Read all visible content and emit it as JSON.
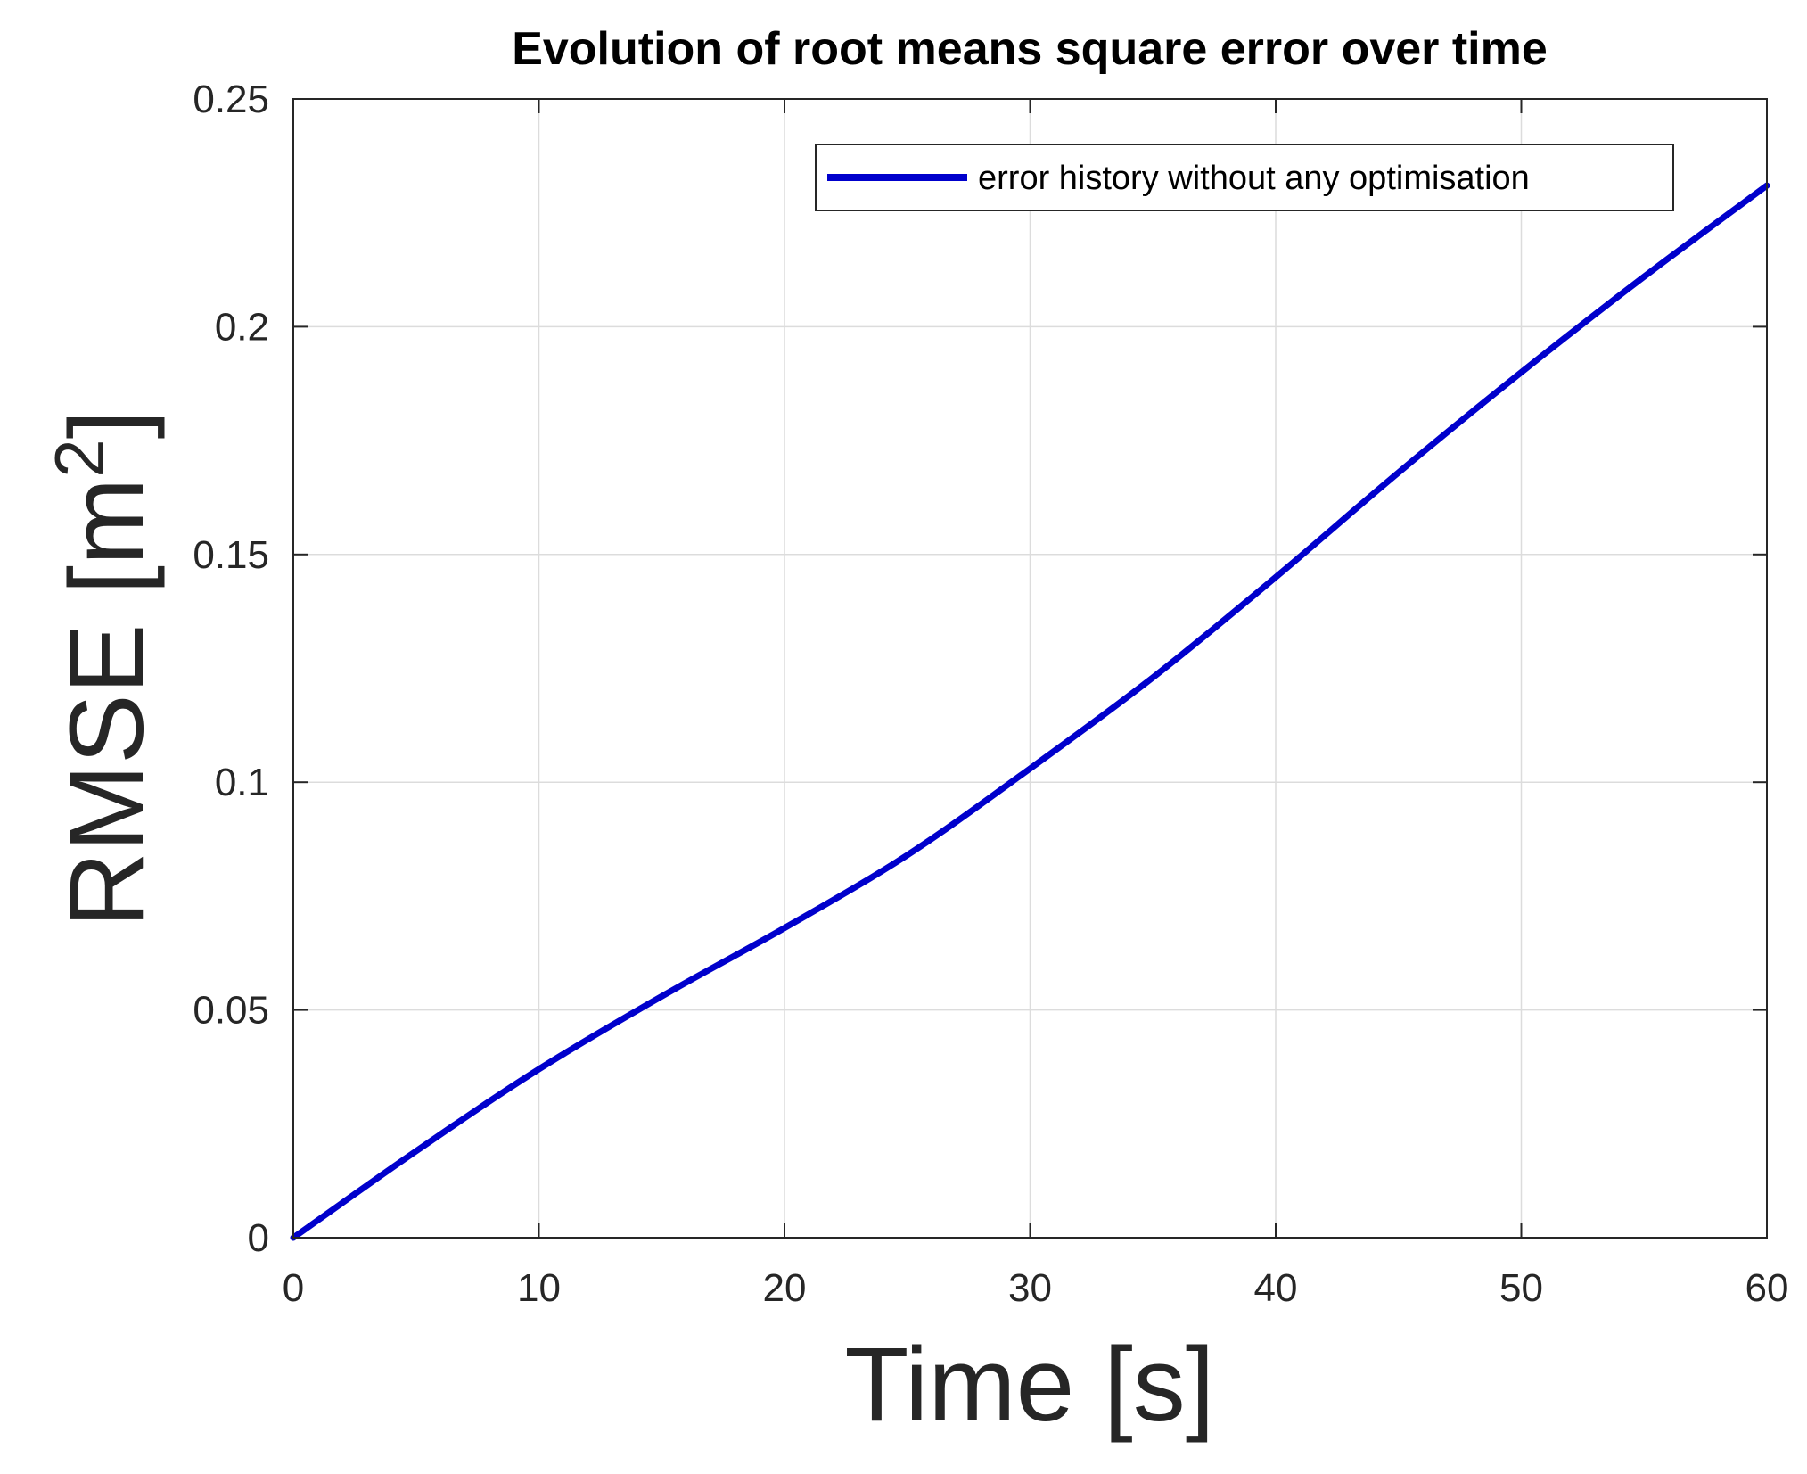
{
  "chart_data": {
    "type": "line",
    "title": "Evolution of root means square error over time",
    "xlabel": "Time [s]",
    "ylabel_main": "RMSE [m",
    "ylabel_sup": "2",
    "ylabel_close": "]",
    "xlim": [
      0,
      60
    ],
    "ylim": [
      0,
      0.25
    ],
    "x_ticks": [
      "0",
      "10",
      "20",
      "30",
      "40",
      "50",
      "60"
    ],
    "y_ticks": [
      "0",
      "0.05",
      "0.1",
      "0.15",
      "0.2",
      "0.25"
    ],
    "grid": true,
    "legend_position": "top-right",
    "series": [
      {
        "name": "error history without any optimisation",
        "color": "#0000cc",
        "x": [
          0,
          5,
          10,
          15,
          20,
          25,
          30,
          35,
          40,
          45,
          50,
          55,
          60
        ],
        "y": [
          0,
          0.019,
          0.037,
          0.053,
          0.068,
          0.084,
          0.103,
          0.123,
          0.145,
          0.168,
          0.19,
          0.211,
          0.231
        ]
      }
    ]
  }
}
